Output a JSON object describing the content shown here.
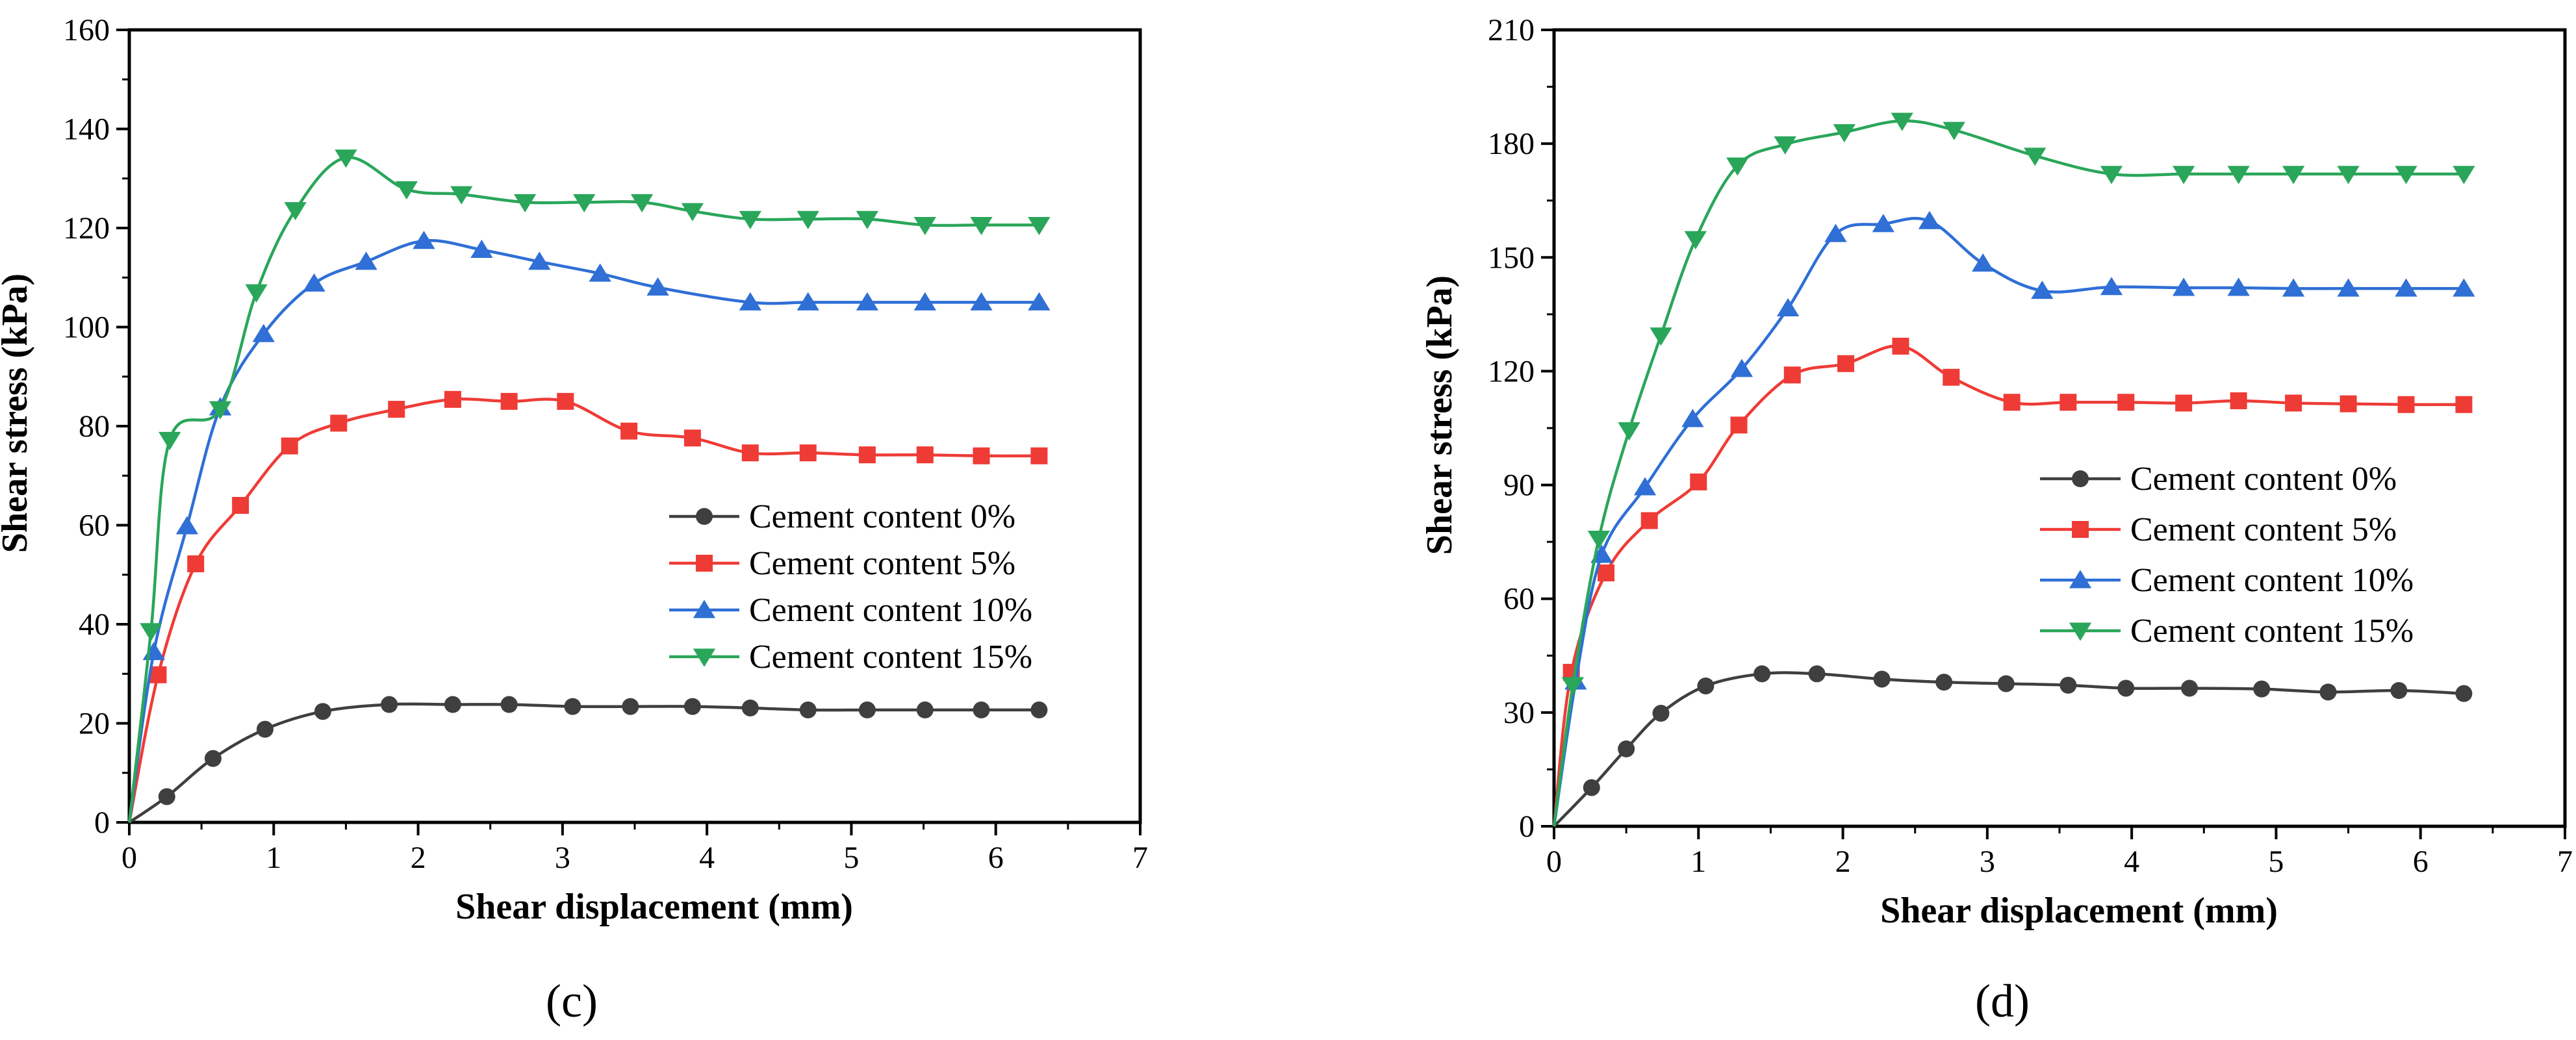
{
  "figure": {
    "panels": [
      "(c)",
      "(d)"
    ]
  },
  "chart_data": [
    {
      "type": "line",
      "panel_label": "(c)",
      "xlabel": "Shear displacement (mm)",
      "ylabel": "Shear stress (kPa)",
      "xlim": [
        0,
        7
      ],
      "ylim": [
        0,
        160
      ],
      "xticks": [
        0,
        1,
        2,
        3,
        4,
        5,
        6,
        7
      ],
      "yticks": [
        0,
        20,
        40,
        60,
        80,
        100,
        120,
        140,
        160
      ],
      "grid": false,
      "legend_position": "center-right",
      "series": [
        {
          "name": "Cement content 0%",
          "color": "#3f3f3f",
          "marker": "circle",
          "x": [
            0,
            0.26,
            0.58,
            0.94,
            1.34,
            1.8,
            2.24,
            2.63,
            3.07,
            3.47,
            3.9,
            4.3,
            4.7,
            5.11,
            5.51,
            5.9,
            6.3
          ],
          "y": [
            0,
            5.2,
            12.9,
            18.8,
            22.4,
            23.8,
            23.8,
            23.8,
            23.4,
            23.4,
            23.4,
            23.1,
            22.7,
            22.7,
            22.7,
            22.7,
            22.7
          ]
        },
        {
          "name": "Cement content 5%",
          "color": "#ef3b36",
          "marker": "square",
          "x": [
            0,
            0.2,
            0.46,
            0.77,
            1.11,
            1.45,
            1.85,
            2.24,
            2.63,
            3.02,
            3.46,
            3.9,
            4.3,
            4.7,
            5.11,
            5.51,
            5.9,
            6.3
          ],
          "y": [
            0,
            29.8,
            52.2,
            64.0,
            76.0,
            80.6,
            83.4,
            85.4,
            85.0,
            85.0,
            79.0,
            77.6,
            74.6,
            74.6,
            74.2,
            74.2,
            74.0,
            74.0
          ]
        },
        {
          "name": "Cement content 10%",
          "color": "#2f6fd6",
          "marker": "triangle-up",
          "x": [
            0,
            0.17,
            0.4,
            0.63,
            0.93,
            1.28,
            1.64,
            2.04,
            2.44,
            2.84,
            3.26,
            3.66,
            4.3,
            4.7,
            5.11,
            5.51,
            5.9,
            6.3
          ],
          "y": [
            0,
            34.4,
            59.8,
            83.8,
            98.6,
            108.8,
            113.2,
            117.4,
            115.6,
            113.2,
            110.8,
            108.0,
            105.0,
            105.0,
            105.0,
            105.0,
            105.0,
            105.0
          ]
        },
        {
          "name": "Cement content 15%",
          "color": "#2aa65a",
          "marker": "triangle-down",
          "x": [
            0,
            0.15,
            0.28,
            0.63,
            0.88,
            1.15,
            1.5,
            1.92,
            2.3,
            2.74,
            3.15,
            3.55,
            3.9,
            4.3,
            4.7,
            5.11,
            5.51,
            5.9,
            6.3
          ],
          "y": [
            0,
            38.6,
            77.2,
            83.4,
            107.0,
            123.6,
            134.2,
            127.8,
            126.8,
            125.2,
            125.2,
            125.2,
            123.4,
            121.8,
            121.8,
            121.8,
            120.6,
            120.6,
            120.6
          ]
        }
      ]
    },
    {
      "type": "line",
      "panel_label": "(d)",
      "xlabel": "Shear displacement (mm)",
      "ylabel": "Shear stress (kPa)",
      "xlim": [
        0,
        7
      ],
      "ylim": [
        0,
        210
      ],
      "xticks": [
        0,
        1,
        2,
        3,
        4,
        5,
        6,
        7
      ],
      "yticks": [
        0,
        30,
        60,
        90,
        120,
        150,
        180,
        210
      ],
      "grid": false,
      "legend_position": "center-right",
      "series": [
        {
          "name": "Cement content 0%",
          "color": "#3f3f3f",
          "marker": "circle",
          "x": [
            0,
            0.26,
            0.5,
            0.74,
            1.05,
            1.44,
            1.82,
            2.27,
            2.7,
            3.13,
            3.56,
            3.96,
            4.4,
            4.9,
            5.36,
            5.85,
            6.3
          ],
          "y": [
            0,
            10.2,
            20.4,
            29.8,
            37.0,
            40.2,
            40.2,
            38.8,
            38.0,
            37.6,
            37.2,
            36.4,
            36.4,
            36.2,
            35.4,
            35.8,
            35.0
          ]
        },
        {
          "name": "Cement content 5%",
          "color": "#ef3b36",
          "marker": "square",
          "x": [
            0,
            0.12,
            0.36,
            0.66,
            1.0,
            1.28,
            1.65,
            2.02,
            2.4,
            2.75,
            3.17,
            3.56,
            3.96,
            4.36,
            4.74,
            5.12,
            5.5,
            5.9,
            6.3
          ],
          "y": [
            0,
            40.6,
            66.8,
            80.6,
            90.8,
            105.8,
            119.0,
            122.0,
            126.6,
            118.4,
            111.8,
            111.8,
            111.8,
            111.6,
            112.2,
            111.6,
            111.4,
            111.2,
            111.2
          ]
        },
        {
          "name": "Cement content 10%",
          "color": "#2f6fd6",
          "marker": "triangle-up",
          "x": [
            0,
            0.15,
            0.33,
            0.63,
            0.96,
            1.3,
            1.62,
            1.95,
            2.28,
            2.6,
            2.97,
            3.38,
            3.86,
            4.36,
            4.74,
            5.12,
            5.5,
            5.9,
            6.3
          ],
          "y": [
            0,
            38.2,
            71.6,
            89.4,
            107.4,
            120.6,
            136.6,
            156.2,
            158.8,
            159.6,
            148.4,
            141.2,
            142.2,
            142.0,
            142.0,
            141.8,
            141.8,
            141.8,
            141.8
          ]
        },
        {
          "name": "Cement content 15%",
          "color": "#2aa65a",
          "marker": "triangle-down",
          "x": [
            0,
            0.13,
            0.31,
            0.52,
            0.74,
            0.98,
            1.27,
            1.6,
            2.01,
            2.41,
            2.77,
            3.33,
            3.86,
            4.36,
            4.74,
            5.12,
            5.5,
            5.9,
            6.3
          ],
          "y": [
            0,
            37.2,
            75.8,
            104.4,
            129.4,
            154.8,
            174.2,
            179.8,
            183.0,
            186.0,
            183.6,
            176.8,
            172.0,
            172.0,
            172.0,
            172.0,
            172.0,
            172.0,
            172.0
          ]
        }
      ]
    }
  ]
}
